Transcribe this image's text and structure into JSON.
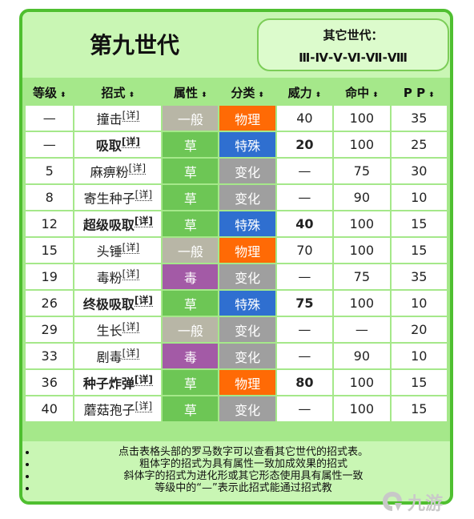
{
  "header": {
    "gen_title": "第九世代",
    "other_title": "其它世代：",
    "other_gens": [
      "Ⅲ",
      "Ⅳ",
      "Ⅴ",
      "Ⅵ",
      "Ⅶ",
      "Ⅷ"
    ]
  },
  "columns": [
    "等级",
    "招式",
    "属性",
    "分类",
    "威力",
    "命中",
    "P P"
  ],
  "sort_arrow": "⬍",
  "detail_label": "[详]",
  "type_colors": {
    "一般": "#b8b6a6",
    "草": "#6dc655",
    "毒": "#a35aa6"
  },
  "category_colors": {
    "物理": "#ff6a05",
    "特殊": "#2f6fd0",
    "变化": "#9f9f9f"
  },
  "rows": [
    {
      "level": "—",
      "move": "撞击",
      "bold": false,
      "type": "一般",
      "category": "物理",
      "power": "40",
      "accuracy": "100",
      "pp": "35"
    },
    {
      "level": "—",
      "move": "吸取",
      "bold": true,
      "type": "草",
      "category": "特殊",
      "power": "20",
      "accuracy": "100",
      "pp": "25"
    },
    {
      "level": "5",
      "move": "麻痹粉",
      "bold": false,
      "type": "草",
      "category": "变化",
      "power": "—",
      "accuracy": "75",
      "pp": "30"
    },
    {
      "level": "8",
      "move": "寄生种子",
      "bold": false,
      "type": "草",
      "category": "变化",
      "power": "—",
      "accuracy": "90",
      "pp": "10"
    },
    {
      "level": "12",
      "move": "超级吸取",
      "bold": true,
      "type": "草",
      "category": "特殊",
      "power": "40",
      "accuracy": "100",
      "pp": "15"
    },
    {
      "level": "15",
      "move": "头锤",
      "bold": false,
      "type": "一般",
      "category": "物理",
      "power": "70",
      "accuracy": "100",
      "pp": "15"
    },
    {
      "level": "19",
      "move": "毒粉",
      "bold": false,
      "type": "毒",
      "category": "变化",
      "power": "—",
      "accuracy": "75",
      "pp": "35"
    },
    {
      "level": "26",
      "move": "终极吸取",
      "bold": true,
      "type": "草",
      "category": "特殊",
      "power": "75",
      "accuracy": "100",
      "pp": "10"
    },
    {
      "level": "29",
      "move": "生长",
      "bold": false,
      "type": "一般",
      "category": "变化",
      "power": "—",
      "accuracy": "—",
      "pp": "20"
    },
    {
      "level": "33",
      "move": "剧毒",
      "bold": false,
      "type": "毒",
      "category": "变化",
      "power": "—",
      "accuracy": "90",
      "pp": "10"
    },
    {
      "level": "36",
      "move": "种子炸弹",
      "bold": true,
      "type": "草",
      "category": "物理",
      "power": "80",
      "accuracy": "100",
      "pp": "15"
    },
    {
      "level": "40",
      "move": "蘑菇孢子",
      "bold": false,
      "type": "草",
      "category": "变化",
      "power": "—",
      "accuracy": "100",
      "pp": "15"
    }
  ],
  "notes": [
    "点击表格头部的罗马数字可以查看其它世代的招式表。",
    "粗体字的招式为具有属性一致加成效果的招式",
    "斜体字的招式为进化形或其它形态使用具有属性一致",
    "等级中的“—”表示此招式能通过招式教"
  ],
  "watermark": {
    "text": "九游"
  }
}
